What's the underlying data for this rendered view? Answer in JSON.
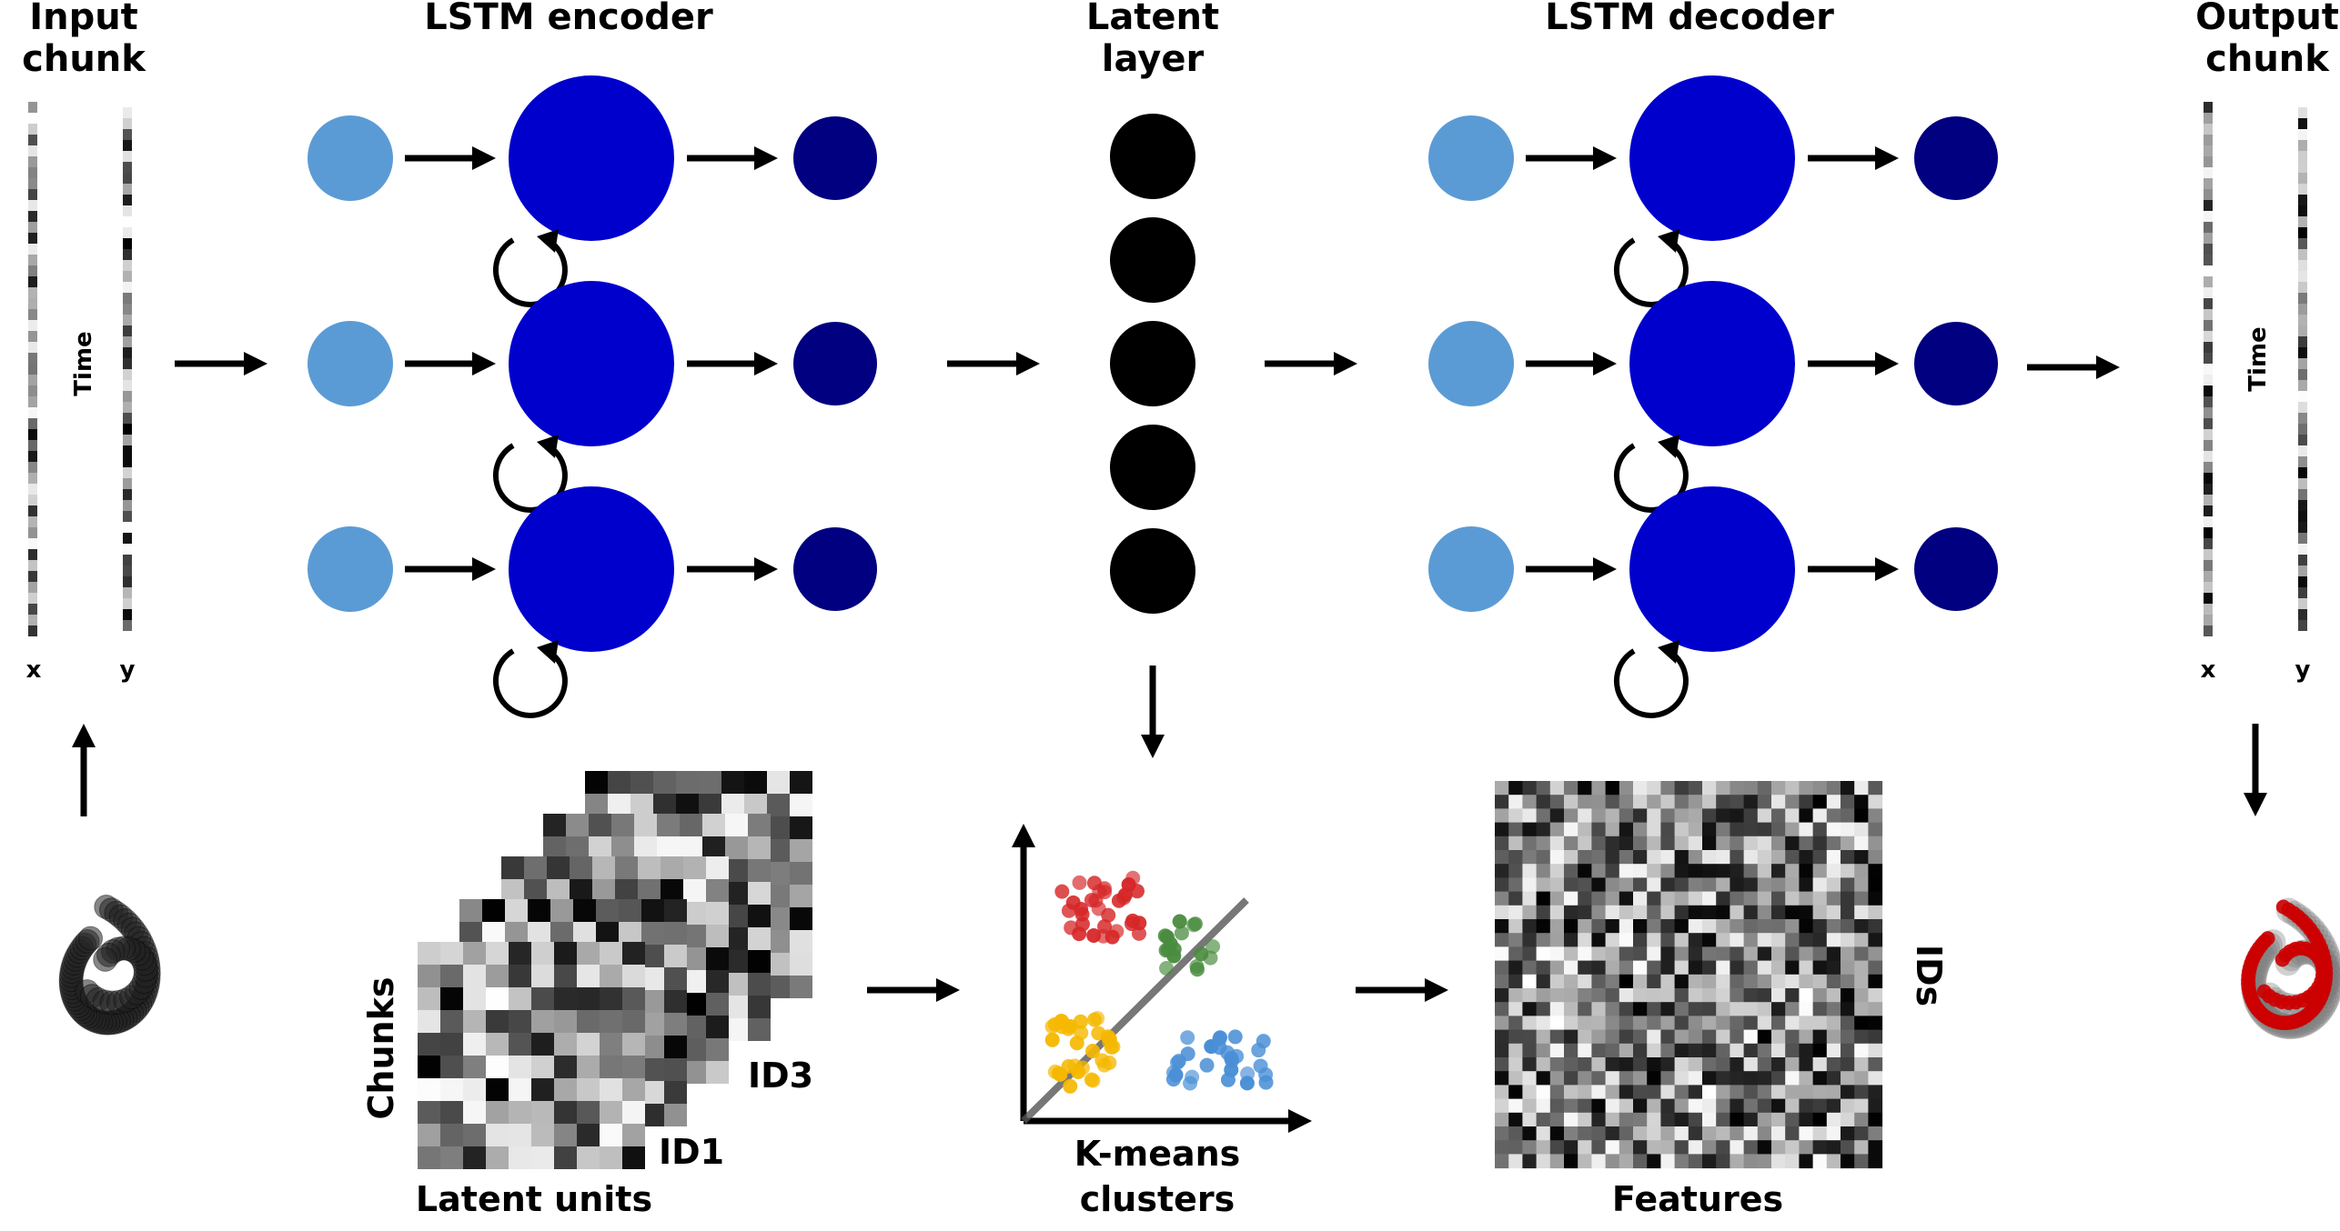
{
  "labels": {
    "input_chunk_1": "Input",
    "input_chunk_2": "chunk",
    "lstm_encoder": "LSTM encoder",
    "latent_layer_1": "Latent",
    "latent_layer_2": "layer",
    "lstm_decoder": "LSTM decoder",
    "output_chunk_1": "Output",
    "output_chunk_2": "chunk",
    "time": "Time",
    "x": "x",
    "y": "y",
    "chunks": "Chunks",
    "latent_units": "Latent units",
    "id1": "ID1",
    "id3": "ID3",
    "kmeans_1": "K-means",
    "kmeans_2": "clusters",
    "features": "Features",
    "ids": "IDs"
  },
  "colors": {
    "input_node": "#5b9bd5",
    "lstm_cell": "#0000cd",
    "output_node": "#000080",
    "latent_node": "#000000",
    "cluster_red": "#d62728",
    "cluster_green": "#4a8c3f",
    "cluster_yellow": "#f5b800",
    "cluster_blue": "#4a8fd6",
    "trajectory_input": "#222222",
    "trajectory_output": "#cc0000"
  },
  "network": {
    "encoder_rows": 3,
    "decoder_rows": 3,
    "latent_units": 5
  },
  "clusters": [
    {
      "name": "red",
      "count": 32
    },
    {
      "name": "green",
      "count": 18
    },
    {
      "name": "yellow",
      "count": 34
    },
    {
      "name": "blue",
      "count": 28
    }
  ]
}
